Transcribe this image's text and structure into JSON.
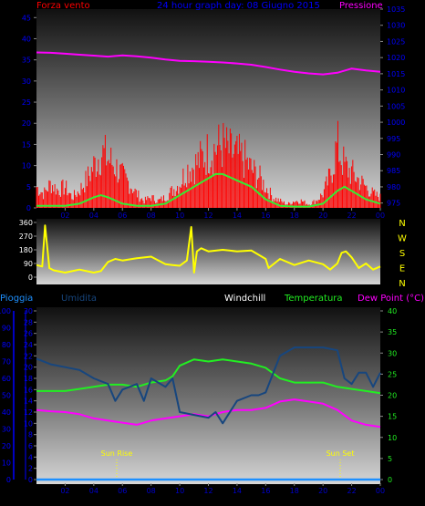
{
  "header": {
    "wind_title": "Forza vento",
    "graph_title": "24 hour graph day: 08 Giugno 2015",
    "pressure_title": "Pressione"
  },
  "colors": {
    "wind": "#ff0000",
    "wind_avg": "#33ee33",
    "pressure": "#ff00ff",
    "direction": "#ffff00",
    "humidity": "#17467e",
    "temperature": "#22ee22",
    "dewpoint": "#ff00ff",
    "rain": "#1e90ff",
    "axis_text": "#0000ff",
    "time_text": "#0000cc"
  },
  "direction_labels": [
    "N",
    "W",
    "S",
    "E",
    "N"
  ],
  "sun": {
    "rise": "Sun Rise",
    "set": "Sun Set",
    "rise_hour": 5.6,
    "set_hour": 21.2
  },
  "chart_data": [
    {
      "id": "wind-pressure",
      "type": "line",
      "title": "24 hour graph day: 08 Giugno 2015",
      "x_ticks": [
        "02",
        "04",
        "06",
        "08",
        "10",
        "12",
        "14",
        "16",
        "18",
        "20",
        "22",
        "00"
      ],
      "x_range_hours": [
        0,
        24
      ],
      "y_left_label": "Forza vento",
      "y_left_ticks": [
        "0",
        "5",
        "10",
        "15",
        "20",
        "25",
        "30",
        "35",
        "40",
        "45"
      ],
      "y_left_range": [
        0,
        47
      ],
      "y_right_label": "Pressione",
      "y_right_ticks": [
        "975",
        "980",
        "985",
        "990",
        "995",
        "1000",
        "1005",
        "1010",
        "1015",
        "1020",
        "1025",
        "1030",
        "1035"
      ],
      "y_right_range": [
        973.5,
        1035
      ],
      "series": [
        {
          "name": "Pressione",
          "axis": "right",
          "x": [
            0,
            1,
            2,
            3,
            4,
            5,
            6,
            7,
            8,
            9,
            10,
            11,
            12,
            13,
            14,
            15,
            16,
            17,
            18,
            19,
            20,
            21,
            22,
            23,
            24
          ],
          "y": [
            1021.6,
            1021.5,
            1021.2,
            1020.9,
            1020.6,
            1020.3,
            1020.7,
            1020.4,
            1020.0,
            1019.4,
            1019.0,
            1018.9,
            1018.7,
            1018.5,
            1018.2,
            1017.8,
            1017.1,
            1016.3,
            1015.6,
            1015.1,
            1014.8,
            1015.3,
            1016.6,
            1016.0,
            1015.6
          ]
        },
        {
          "name": "Raffica",
          "axis": "left",
          "x": [
            0,
            0.5,
            1,
            1.5,
            2,
            2.5,
            3,
            3.5,
            4,
            4.5,
            5,
            5.5,
            6,
            6.5,
            7,
            7.5,
            8,
            8.5,
            9,
            9.5,
            10,
            10.5,
            11,
            11.5,
            12,
            12.5,
            13,
            13.5,
            14,
            14.5,
            15,
            15.5,
            16,
            16.5,
            17,
            17.5,
            18,
            18.5,
            19,
            19.5,
            20,
            20.5,
            21,
            21.5,
            22,
            22.5,
            23,
            23.5,
            24
          ],
          "y": [
            6,
            4,
            7,
            5,
            6,
            3,
            5,
            8,
            12,
            16,
            14,
            12,
            9,
            7,
            4,
            2,
            3,
            2,
            3,
            5,
            7,
            11,
            12,
            14,
            16,
            17,
            18,
            16,
            15,
            14,
            11,
            9,
            6,
            3,
            2,
            1,
            2,
            2,
            1,
            2,
            4,
            9,
            18,
            12,
            10,
            8,
            6,
            4,
            3
          ]
        },
        {
          "name": "Vento medio",
          "axis": "left",
          "x": [
            0,
            1,
            2,
            3,
            4,
            4.5,
            5,
            6,
            7,
            8,
            9,
            10,
            11,
            12,
            12.5,
            13,
            14,
            15,
            16,
            17,
            18,
            19,
            20,
            21,
            21.5,
            22,
            23,
            24
          ],
          "y": [
            0.5,
            0.5,
            0.5,
            1,
            2.5,
            3,
            2.5,
            1,
            0.5,
            0.5,
            1,
            3,
            5,
            7,
            8,
            8,
            6.5,
            5,
            2,
            0.5,
            0.3,
            0.3,
            1,
            4,
            5,
            4,
            2,
            1
          ]
        }
      ]
    },
    {
      "id": "wind-direction",
      "type": "line",
      "y_ticks": [
        "0",
        "90",
        "180",
        "270",
        "360"
      ],
      "y_range": [
        0,
        360
      ],
      "y_right_ticks": [
        "N",
        "W",
        "S",
        "E",
        "N"
      ],
      "series": [
        {
          "name": "Direzione",
          "x": [
            0,
            0.4,
            0.6,
            0.9,
            1.2,
            2,
            3,
            4,
            4.5,
            5,
            5.5,
            6,
            7,
            8,
            9,
            9.5,
            10,
            10.5,
            10.8,
            11,
            11.2,
            11.5,
            12,
            13,
            14,
            15,
            16,
            16.2,
            17,
            18,
            19,
            20,
            20.5,
            21,
            21.3,
            21.6,
            22,
            22.5,
            23,
            23.5,
            24
          ],
          "y": [
            80,
            70,
            340,
            60,
            45,
            30,
            50,
            30,
            40,
            100,
            120,
            110,
            125,
            135,
            85,
            80,
            75,
            110,
            330,
            30,
            170,
            190,
            170,
            180,
            170,
            175,
            120,
            60,
            120,
            80,
            110,
            85,
            50,
            90,
            160,
            170,
            130,
            60,
            90,
            50,
            70
          ]
        }
      ]
    },
    {
      "id": "humidity-temperature",
      "type": "line",
      "x_ticks": [
        "02",
        "04",
        "06",
        "08",
        "10",
        "12",
        "14",
        "16",
        "18",
        "20",
        "22",
        "00"
      ],
      "y_left_labels": [
        "Pioggia",
        "Umidita"
      ],
      "y_right_labels": [
        "Windchill",
        "Temperatura",
        "Dew Point (°C)"
      ],
      "y_rain_ticks": [
        "0",
        "10",
        "20",
        "30",
        "40",
        "50",
        "60",
        "70",
        "80",
        "90",
        "100"
      ],
      "y_rain_range": [
        0,
        100
      ],
      "y_hum_ticks": [
        "0",
        "2",
        "4",
        "6",
        "8",
        "10",
        "12",
        "14",
        "16",
        "18",
        "20",
        "22",
        "24",
        "26",
        "28",
        "30"
      ],
      "y_hum_range": [
        0,
        30
      ],
      "y_temp_ticks": [
        "0",
        "5",
        "10",
        "15",
        "20",
        "25",
        "30",
        "35",
        "40"
      ],
      "y_temp_range": [
        0,
        40
      ],
      "series": [
        {
          "name": "Umidita",
          "axis": "hum",
          "x": [
            0,
            1,
            2,
            3,
            4,
            5,
            5.5,
            6,
            7,
            7.5,
            8,
            9,
            9.5,
            10,
            11,
            12,
            12.5,
            13,
            14,
            15,
            15.5,
            16,
            17,
            18,
            19,
            20,
            21,
            21.5,
            22,
            22.5,
            23,
            23.5,
            24
          ],
          "y": [
            21.5,
            20.5,
            20,
            19.5,
            18,
            17,
            14,
            16,
            17,
            14,
            18,
            16.5,
            18,
            12,
            11.5,
            11,
            12,
            10,
            14,
            15,
            15,
            15.5,
            22,
            23.5,
            23.5,
            23.5,
            23,
            18,
            17,
            19,
            19,
            16.5,
            19
          ]
        },
        {
          "name": "Temperatura",
          "axis": "temp",
          "x": [
            0,
            1,
            2,
            3,
            4,
            5,
            6,
            7,
            8,
            9,
            9.5,
            10,
            11,
            12,
            13,
            14,
            15,
            16,
            17,
            18,
            19,
            20,
            21,
            22,
            23,
            24
          ],
          "y": [
            21,
            21,
            21,
            21.5,
            22,
            22.5,
            22.5,
            22,
            23,
            23.5,
            24.5,
            27,
            28.5,
            28,
            28.5,
            28,
            27.5,
            26.5,
            24,
            23,
            23,
            23,
            22,
            21.5,
            21,
            20.5
          ]
        },
        {
          "name": "Dew Point",
          "axis": "temp",
          "x": [
            0,
            1,
            2,
            3,
            4,
            5,
            6,
            7,
            8,
            9,
            10,
            11,
            12,
            13,
            14,
            15,
            16,
            17,
            18,
            19,
            20,
            21,
            22,
            23,
            24
          ],
          "y": [
            16.5,
            16.2,
            16,
            15.5,
            14.5,
            14,
            13.5,
            13,
            14,
            14.5,
            15,
            15.5,
            15,
            16,
            16.5,
            16.5,
            17,
            18.5,
            19,
            18.5,
            18,
            16.5,
            14,
            13,
            12.5
          ]
        },
        {
          "name": "Pioggia",
          "axis": "rain",
          "x": [
            0,
            24
          ],
          "y": [
            0,
            0
          ]
        }
      ]
    }
  ]
}
